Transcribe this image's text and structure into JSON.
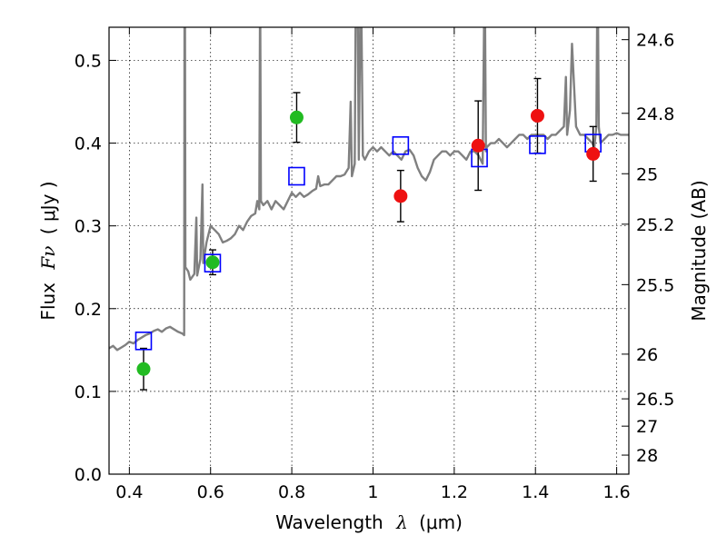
{
  "chart_data": {
    "type": "scatter",
    "xlabel": "Wavelength",
    "xlabel_math": "λ",
    "xlabel_units": "(μm)",
    "ylabel": "Flux",
    "ylabel_math": "Fν",
    "ylabel_units": "( μJy )",
    "ylabel_right": "Magnitude (AB)",
    "xlim": [
      0.35,
      1.63
    ],
    "ylim": [
      0.0,
      0.54
    ],
    "grid": true,
    "x_ticks": [
      0.4,
      0.6,
      0.8,
      1.0,
      1.2,
      1.4,
      1.6
    ],
    "x_tick_labels": [
      "0.4",
      "0.6",
      "0.8",
      "1",
      "1.2",
      "1.4",
      "1.6"
    ],
    "y_ticks": [
      0.0,
      0.1,
      0.2,
      0.3,
      0.4,
      0.5
    ],
    "y_tick_labels": [
      "0.0",
      "0.1",
      "0.2",
      "0.3",
      "0.4",
      "0.5"
    ],
    "right_ticks": [
      {
        "label": "24.6",
        "flux": 0.525
      },
      {
        "label": "24.8",
        "flux": 0.436
      },
      {
        "label": "25",
        "flux": 0.363
      },
      {
        "label": "25.2",
        "flux": 0.302
      },
      {
        "label": "25.5",
        "flux": 0.229
      },
      {
        "label": "26",
        "flux": 0.145
      },
      {
        "label": "26.5",
        "flux": 0.091
      },
      {
        "label": "27",
        "flux": 0.058
      },
      {
        "label": "28",
        "flux": 0.023
      }
    ],
    "series": [
      {
        "name": "model_spectrum",
        "style": "line",
        "color": "#808080",
        "points": [
          [
            0.35,
            0.152
          ],
          [
            0.36,
            0.155
          ],
          [
            0.37,
            0.15
          ],
          [
            0.38,
            0.153
          ],
          [
            0.39,
            0.156
          ],
          [
            0.4,
            0.16
          ],
          [
            0.41,
            0.158
          ],
          [
            0.42,
            0.162
          ],
          [
            0.43,
            0.165
          ],
          [
            0.44,
            0.168
          ],
          [
            0.45,
            0.17
          ],
          [
            0.46,
            0.173
          ],
          [
            0.47,
            0.175
          ],
          [
            0.48,
            0.172
          ],
          [
            0.49,
            0.176
          ],
          [
            0.5,
            0.178
          ],
          [
            0.51,
            0.175
          ],
          [
            0.52,
            0.172
          ],
          [
            0.53,
            0.17
          ],
          [
            0.535,
            0.168
          ],
          [
            0.536,
            0.62
          ],
          [
            0.537,
            0.55
          ],
          [
            0.538,
            0.25
          ],
          [
            0.545,
            0.245
          ],
          [
            0.55,
            0.235
          ],
          [
            0.56,
            0.242
          ],
          [
            0.565,
            0.31
          ],
          [
            0.567,
            0.24
          ],
          [
            0.575,
            0.26
          ],
          [
            0.58,
            0.35
          ],
          [
            0.582,
            0.255
          ],
          [
            0.59,
            0.28
          ],
          [
            0.6,
            0.3
          ],
          [
            0.61,
            0.295
          ],
          [
            0.62,
            0.29
          ],
          [
            0.63,
            0.28
          ],
          [
            0.64,
            0.282
          ],
          [
            0.65,
            0.285
          ],
          [
            0.66,
            0.29
          ],
          [
            0.67,
            0.3
          ],
          [
            0.68,
            0.295
          ],
          [
            0.69,
            0.305
          ],
          [
            0.7,
            0.312
          ],
          [
            0.71,
            0.315
          ],
          [
            0.715,
            0.33
          ],
          [
            0.72,
            0.32
          ],
          [
            0.722,
            0.6
          ],
          [
            0.724,
            0.33
          ],
          [
            0.73,
            0.325
          ],
          [
            0.74,
            0.33
          ],
          [
            0.75,
            0.32
          ],
          [
            0.76,
            0.33
          ],
          [
            0.77,
            0.325
          ],
          [
            0.78,
            0.32
          ],
          [
            0.79,
            0.33
          ],
          [
            0.8,
            0.34
          ],
          [
            0.81,
            0.335
          ],
          [
            0.82,
            0.34
          ],
          [
            0.83,
            0.335
          ],
          [
            0.84,
            0.338
          ],
          [
            0.85,
            0.342
          ],
          [
            0.86,
            0.345
          ],
          [
            0.865,
            0.36
          ],
          [
            0.87,
            0.348
          ],
          [
            0.88,
            0.35
          ],
          [
            0.89,
            0.35
          ],
          [
            0.9,
            0.355
          ],
          [
            0.91,
            0.36
          ],
          [
            0.92,
            0.36
          ],
          [
            0.93,
            0.362
          ],
          [
            0.94,
            0.37
          ],
          [
            0.945,
            0.45
          ],
          [
            0.948,
            0.36
          ],
          [
            0.955,
            0.375
          ],
          [
            0.958,
            0.62
          ],
          [
            0.962,
            0.58
          ],
          [
            0.965,
            0.38
          ],
          [
            0.97,
            0.62
          ],
          [
            0.975,
            0.385
          ],
          [
            0.98,
            0.38
          ],
          [
            0.99,
            0.39
          ],
          [
            1.0,
            0.395
          ],
          [
            1.01,
            0.39
          ],
          [
            1.02,
            0.395
          ],
          [
            1.03,
            0.39
          ],
          [
            1.04,
            0.385
          ],
          [
            1.05,
            0.39
          ],
          [
            1.06,
            0.385
          ],
          [
            1.07,
            0.38
          ],
          [
            1.08,
            0.39
          ],
          [
            1.09,
            0.392
          ],
          [
            1.1,
            0.385
          ],
          [
            1.11,
            0.37
          ],
          [
            1.12,
            0.36
          ],
          [
            1.13,
            0.355
          ],
          [
            1.14,
            0.365
          ],
          [
            1.15,
            0.38
          ],
          [
            1.16,
            0.385
          ],
          [
            1.17,
            0.39
          ],
          [
            1.18,
            0.39
          ],
          [
            1.19,
            0.385
          ],
          [
            1.2,
            0.39
          ],
          [
            1.21,
            0.39
          ],
          [
            1.22,
            0.385
          ],
          [
            1.23,
            0.38
          ],
          [
            1.24,
            0.39
          ],
          [
            1.25,
            0.39
          ],
          [
            1.26,
            0.385
          ],
          [
            1.27,
            0.375
          ],
          [
            1.275,
            0.62
          ],
          [
            1.278,
            0.39
          ],
          [
            1.28,
            0.395
          ],
          [
            1.29,
            0.4
          ],
          [
            1.3,
            0.4
          ],
          [
            1.31,
            0.405
          ],
          [
            1.32,
            0.4
          ],
          [
            1.33,
            0.395
          ],
          [
            1.34,
            0.4
          ],
          [
            1.35,
            0.405
          ],
          [
            1.36,
            0.41
          ],
          [
            1.37,
            0.41
          ],
          [
            1.38,
            0.405
          ],
          [
            1.39,
            0.41
          ],
          [
            1.4,
            0.41
          ],
          [
            1.41,
            0.41
          ],
          [
            1.42,
            0.41
          ],
          [
            1.43,
            0.405
          ],
          [
            1.44,
            0.41
          ],
          [
            1.45,
            0.41
          ],
          [
            1.46,
            0.415
          ],
          [
            1.47,
            0.42
          ],
          [
            1.475,
            0.48
          ],
          [
            1.478,
            0.41
          ],
          [
            1.485,
            0.44
          ],
          [
            1.49,
            0.52
          ],
          [
            1.495,
            0.47
          ],
          [
            1.5,
            0.42
          ],
          [
            1.51,
            0.41
          ],
          [
            1.52,
            0.41
          ],
          [
            1.53,
            0.405
          ],
          [
            1.54,
            0.4
          ],
          [
            1.545,
            0.395
          ],
          [
            1.55,
            0.42
          ],
          [
            1.553,
            0.62
          ],
          [
            1.556,
            0.42
          ],
          [
            1.56,
            0.4
          ],
          [
            1.57,
            0.405
          ],
          [
            1.58,
            0.41
          ],
          [
            1.59,
            0.41
          ],
          [
            1.6,
            0.412
          ],
          [
            1.61,
            0.41
          ],
          [
            1.62,
            0.41
          ],
          [
            1.63,
            0.41
          ]
        ]
      },
      {
        "name": "model_bandpass",
        "style": "open_square",
        "color": "#0000ff",
        "points": [
          [
            0.435,
            0.161
          ],
          [
            0.605,
            0.255
          ],
          [
            0.812,
            0.36
          ],
          [
            1.068,
            0.397
          ],
          [
            1.262,
            0.382
          ],
          [
            1.405,
            0.398
          ],
          [
            1.542,
            0.4
          ]
        ]
      },
      {
        "name": "observed_optical",
        "style": "filled_circle",
        "color": "#22bb22",
        "points": [
          [
            0.435,
            0.127
          ],
          [
            0.605,
            0.256
          ],
          [
            0.812,
            0.431
          ]
        ],
        "error": [
          0.025,
          0.015,
          0.03
        ]
      },
      {
        "name": "observed_nir",
        "style": "filled_circle",
        "color": "#ee1111",
        "points": [
          [
            1.068,
            0.336
          ],
          [
            1.259,
            0.397
          ],
          [
            1.405,
            0.433
          ],
          [
            1.542,
            0.387
          ]
        ],
        "error": [
          0.031,
          0.054,
          0.045,
          0.033
        ]
      }
    ]
  }
}
